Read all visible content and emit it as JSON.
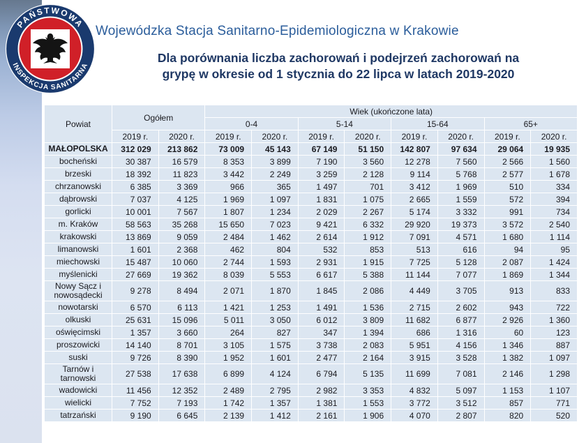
{
  "logo": {
    "top_text": "PAŃSTWOWA",
    "bottom_text": "INSPEKCJA SANITARNA",
    "navy": "#1a3a6e",
    "red": "#d02028"
  },
  "header": {
    "title": "Wojewódzka Stacja Sanitarno-Epidemiologiczna w Krakowie",
    "subtitle_line1": "Dla porównania liczba zachorowań i podejrzeń zachorowań na",
    "subtitle_line2": "grypę w okresie od 1 stycznia do 22 lipca w latach 2019-2020"
  },
  "colors": {
    "title_blue": "#2b5d9b",
    "subtitle_navy": "#1f3864",
    "cell_background": "#dce6f1",
    "grid_white": "#ffffff"
  },
  "table": {
    "col_powiat": "Powiat",
    "col_total": "Ogółem",
    "col_age_label": "Wiek (ukończone lata)",
    "age_groups": [
      "0-4",
      "5-14",
      "15-64",
      "65+"
    ],
    "year_labels": [
      "2019 r.",
      "2020 r."
    ],
    "rows": [
      {
        "label": "MAŁOPOLSKA",
        "bold": true,
        "values": [
          "312 029",
          "213 862",
          "73 009",
          "45 143",
          "67 149",
          "51 150",
          "142 807",
          "97 634",
          "29 064",
          "19 935"
        ]
      },
      {
        "label": "bocheński",
        "values": [
          "30 387",
          "16 579",
          "8 353",
          "3 899",
          "7 190",
          "3 560",
          "12 278",
          "7 560",
          "2 566",
          "1 560"
        ]
      },
      {
        "label": "brzeski",
        "values": [
          "18 392",
          "11 823",
          "3 442",
          "2 249",
          "3 259",
          "2 128",
          "9 114",
          "5 768",
          "2 577",
          "1 678"
        ]
      },
      {
        "label": "chrzanowski",
        "values": [
          "6 385",
          "3 369",
          "966",
          "365",
          "1 497",
          "701",
          "3 412",
          "1 969",
          "510",
          "334"
        ]
      },
      {
        "label": "dąbrowski",
        "values": [
          "7 037",
          "4 125",
          "1 969",
          "1 097",
          "1 831",
          "1 075",
          "2 665",
          "1 559",
          "572",
          "394"
        ]
      },
      {
        "label": "gorlicki",
        "values": [
          "10 001",
          "7 567",
          "1 807",
          "1 234",
          "2 029",
          "2 267",
          "5 174",
          "3 332",
          "991",
          "734"
        ]
      },
      {
        "label": "m. Kraków",
        "values": [
          "58 563",
          "35 268",
          "15 650",
          "7 023",
          "9 421",
          "6 332",
          "29 920",
          "19 373",
          "3 572",
          "2 540"
        ]
      },
      {
        "label": "krakowski",
        "values": [
          "13 869",
          "9 059",
          "2 484",
          "1 462",
          "2 614",
          "1 912",
          "7 091",
          "4 571",
          "1 680",
          "1 114"
        ]
      },
      {
        "label": "limanowski",
        "values": [
          "1 601",
          "2 368",
          "462",
          "804",
          "532",
          "853",
          "513",
          "616",
          "94",
          "95"
        ]
      },
      {
        "label": "miechowski",
        "values": [
          "15 487",
          "10 060",
          "2 744",
          "1 593",
          "2 931",
          "1 915",
          "7 725",
          "5 128",
          "2 087",
          "1 424"
        ]
      },
      {
        "label": "myślenicki",
        "values": [
          "27 669",
          "19 362",
          "8 039",
          "5 553",
          "6 617",
          "5 388",
          "11 144",
          "7 077",
          "1 869",
          "1 344"
        ]
      },
      {
        "label": "Nowy Sącz i nowosądecki",
        "values": [
          "9 278",
          "8 494",
          "2 071",
          "1 870",
          "1 845",
          "2 086",
          "4 449",
          "3 705",
          "913",
          "833"
        ]
      },
      {
        "label": "nowotarski",
        "values": [
          "6 570",
          "6 113",
          "1 421",
          "1 253",
          "1 491",
          "1 536",
          "2 715",
          "2 602",
          "943",
          "722"
        ]
      },
      {
        "label": "olkuski",
        "values": [
          "25 631",
          "15 096",
          "5 011",
          "3 050",
          "6 012",
          "3 809",
          "11 682",
          "6 877",
          "2 926",
          "1 360"
        ]
      },
      {
        "label": "oświęcimski",
        "values": [
          "1 357",
          "3 660",
          "264",
          "827",
          "347",
          "1 394",
          "686",
          "1 316",
          "60",
          "123"
        ]
      },
      {
        "label": "proszowicki",
        "values": [
          "14 140",
          "8 701",
          "3 105",
          "1 575",
          "3 738",
          "2 083",
          "5 951",
          "4 156",
          "1 346",
          "887"
        ]
      },
      {
        "label": "suski",
        "values": [
          "9 726",
          "8 390",
          "1 952",
          "1 601",
          "2 477",
          "2 164",
          "3 915",
          "3 528",
          "1 382",
          "1 097"
        ]
      },
      {
        "label": "Tarnów i tarnowski",
        "values": [
          "27 538",
          "17 638",
          "6 899",
          "4 124",
          "6 794",
          "5 135",
          "11 699",
          "7 081",
          "2 146",
          "1 298"
        ]
      },
      {
        "label": "wadowicki",
        "values": [
          "11 456",
          "12 352",
          "2 489",
          "2 795",
          "2 982",
          "3 353",
          "4 832",
          "5 097",
          "1 153",
          "1 107"
        ]
      },
      {
        "label": "wielicki",
        "values": [
          "7 752",
          "7 193",
          "1 742",
          "1 357",
          "1 381",
          "1 553",
          "3 772",
          "3 512",
          "857",
          "771"
        ]
      },
      {
        "label": "tatrzański",
        "values": [
          "9 190",
          "6 645",
          "2 139",
          "1 412",
          "2 161",
          "1 906",
          "4 070",
          "2 807",
          "820",
          "520"
        ]
      }
    ]
  }
}
